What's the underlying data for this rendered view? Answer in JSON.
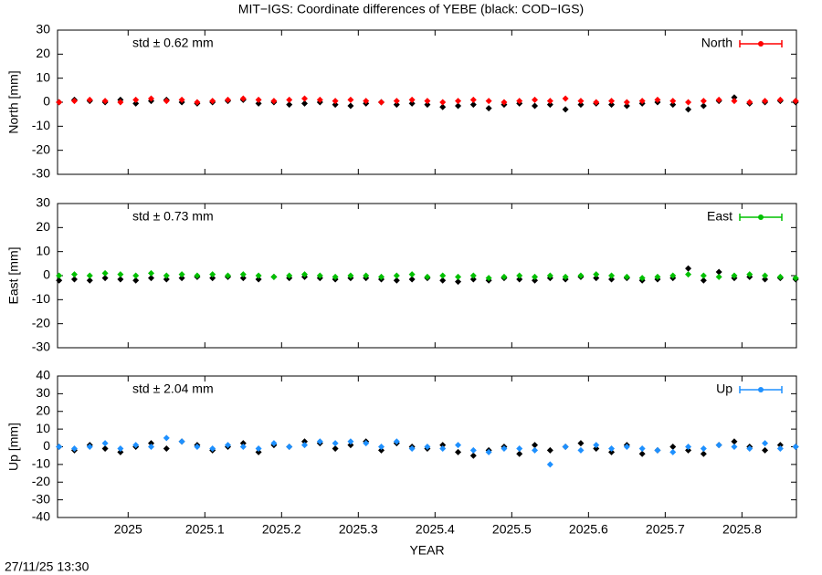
{
  "title": "MIT−IGS: Coordinate differences of YEBE (black: COD−IGS)",
  "timestamp": "27/11/25 13:30",
  "chart_data": [
    {
      "type": "scatter",
      "ylabel": "North [mm]",
      "annotation": "std ± 0.62 mm",
      "xlim": [
        2024.908,
        2025.871
      ],
      "xticks": [
        2025,
        2025.1,
        2025.2,
        2025.3,
        2025.4,
        2025.5,
        2025.6,
        2025.7,
        2025.8
      ],
      "ylim": [
        -30,
        30
      ],
      "yticks": [
        -30,
        -20,
        -10,
        0,
        10,
        20,
        30
      ],
      "legend": "top-right",
      "x": [
        2024.91,
        2024.93,
        2024.95,
        2024.97,
        2024.99,
        2025.01,
        2025.03,
        2025.05,
        2025.07,
        2025.09,
        2025.11,
        2025.13,
        2025.15,
        2025.17,
        2025.19,
        2025.21,
        2025.23,
        2025.25,
        2025.27,
        2025.29,
        2025.31,
        2025.33,
        2025.35,
        2025.37,
        2025.39,
        2025.41,
        2025.43,
        2025.45,
        2025.47,
        2025.49,
        2025.51,
        2025.53,
        2025.55,
        2025.57,
        2025.59,
        2025.61,
        2025.63,
        2025.65,
        2025.67,
        2025.69,
        2025.71,
        2025.73,
        2025.75,
        2025.77,
        2025.79,
        2025.81,
        2025.83,
        2025.85,
        2025.87
      ],
      "series": [
        {
          "color": "#000000",
          "values": [
            0,
            1,
            0.5,
            0,
            1,
            -0.5,
            0.5,
            1,
            0,
            -0.5,
            0,
            0.5,
            1,
            -0.5,
            0,
            -1,
            -0.5,
            0,
            -1,
            -1.5,
            -0.5,
            0,
            -1,
            -0.5,
            -1,
            -2,
            -1.5,
            -1,
            -2.5,
            -1,
            -0.5,
            -1.5,
            -1,
            -3,
            -1,
            -0.5,
            -1,
            -1.5,
            -0.5,
            0,
            -1,
            -3,
            -1.5,
            0.5,
            2,
            -0.5,
            0,
            0.5,
            0
          ]
        },
        {
          "name": "North",
          "color": "#ff0000",
          "values": [
            0,
            0.5,
            1,
            0.5,
            0,
            1,
            1.5,
            0.5,
            1,
            0,
            0.5,
            1,
            1.5,
            1,
            0.5,
            1,
            1.5,
            1,
            0.5,
            1,
            0.5,
            0,
            0.5,
            1,
            0.5,
            0,
            0.5,
            1,
            0.5,
            0,
            0.5,
            1,
            0.5,
            1.5,
            0.5,
            0,
            0.5,
            0,
            0.5,
            1,
            0.5,
            0,
            0.5,
            1,
            0.5,
            0,
            0.5,
            1,
            0.5
          ]
        }
      ]
    },
    {
      "type": "scatter",
      "ylabel": "East [mm]",
      "annotation": "std ± 0.73 mm",
      "xlim": [
        2024.908,
        2025.871
      ],
      "xticks": [
        2025,
        2025.1,
        2025.2,
        2025.3,
        2025.4,
        2025.5,
        2025.6,
        2025.7,
        2025.8
      ],
      "ylim": [
        -30,
        30
      ],
      "yticks": [
        -30,
        -20,
        -10,
        0,
        10,
        20,
        30
      ],
      "legend": "top-right",
      "x": [
        2024.91,
        2024.93,
        2024.95,
        2024.97,
        2024.99,
        2025.01,
        2025.03,
        2025.05,
        2025.07,
        2025.09,
        2025.11,
        2025.13,
        2025.15,
        2025.17,
        2025.19,
        2025.21,
        2025.23,
        2025.25,
        2025.27,
        2025.29,
        2025.31,
        2025.33,
        2025.35,
        2025.37,
        2025.39,
        2025.41,
        2025.43,
        2025.45,
        2025.47,
        2025.49,
        2025.51,
        2025.53,
        2025.55,
        2025.57,
        2025.59,
        2025.61,
        2025.63,
        2025.65,
        2025.67,
        2025.69,
        2025.71,
        2025.73,
        2025.75,
        2025.77,
        2025.79,
        2025.81,
        2025.83,
        2025.85,
        2025.87
      ],
      "series": [
        {
          "color": "#000000",
          "values": [
            -2,
            -1.5,
            -2,
            -1,
            -1.5,
            -2,
            -1,
            -1.5,
            -1,
            -0.5,
            -1,
            -0.5,
            -1,
            -1.5,
            -0.5,
            -1,
            -0.5,
            -1,
            -1.5,
            -1,
            -1,
            -1.5,
            -2,
            -1.5,
            -1,
            -2,
            -2.5,
            -1.5,
            -2,
            -1,
            -1.5,
            -2,
            -1,
            -1.5,
            -0.5,
            -1,
            -1.5,
            -1,
            -2,
            -1.5,
            -1,
            3,
            -2,
            1.5,
            -1,
            -0.5,
            -1.5,
            -1,
            -1.5
          ]
        },
        {
          "name": "East",
          "color": "#00c000",
          "values": [
            0,
            0.5,
            0,
            1,
            0.5,
            0,
            1,
            0,
            0.5,
            0,
            0.5,
            0,
            0.5,
            0,
            -0.5,
            0,
            0.5,
            0,
            -0.5,
            0,
            0,
            -0.5,
            0,
            0.5,
            -0.5,
            0,
            -0.5,
            0,
            -1,
            -0.5,
            0,
            -0.5,
            0,
            -0.5,
            0,
            0.5,
            0,
            -0.5,
            -1,
            -0.5,
            0,
            0.5,
            0,
            -0.5,
            0,
            0.5,
            0,
            -0.5,
            -1
          ]
        }
      ]
    },
    {
      "type": "scatter",
      "ylabel": "Up [mm]",
      "xlabel": "YEAR",
      "annotation": "std ± 2.04 mm",
      "xlim": [
        2024.908,
        2025.871
      ],
      "xticks": [
        2025,
        2025.1,
        2025.2,
        2025.3,
        2025.4,
        2025.5,
        2025.6,
        2025.7,
        2025.8
      ],
      "ylim": [
        -40,
        40
      ],
      "yticks": [
        -40,
        -30,
        -20,
        -10,
        0,
        10,
        20,
        30,
        40
      ],
      "legend": "top-right",
      "x": [
        2024.91,
        2024.93,
        2024.95,
        2024.97,
        2024.99,
        2025.01,
        2025.03,
        2025.05,
        2025.07,
        2025.09,
        2025.11,
        2025.13,
        2025.15,
        2025.17,
        2025.19,
        2025.21,
        2025.23,
        2025.25,
        2025.27,
        2025.29,
        2025.31,
        2025.33,
        2025.35,
        2025.37,
        2025.39,
        2025.41,
        2025.43,
        2025.45,
        2025.47,
        2025.49,
        2025.51,
        2025.53,
        2025.55,
        2025.57,
        2025.59,
        2025.61,
        2025.63,
        2025.65,
        2025.67,
        2025.69,
        2025.71,
        2025.73,
        2025.75,
        2025.77,
        2025.79,
        2025.81,
        2025.83,
        2025.85,
        2025.87
      ],
      "series": [
        {
          "color": "#000000",
          "values": [
            0,
            -2,
            1,
            -1,
            -3,
            0,
            2,
            -1,
            3,
            1,
            -2,
            0,
            2,
            -3,
            1,
            0,
            3,
            2,
            -1,
            1,
            3,
            -2,
            2,
            0,
            -1,
            1,
            -3,
            -5,
            -2,
            0,
            -4,
            1,
            -2,
            0,
            2,
            -1,
            -3,
            1,
            -4,
            -2,
            0,
            -2,
            -4,
            1,
            3,
            0,
            -2,
            1,
            0
          ]
        },
        {
          "name": "Up",
          "color": "#1e90ff",
          "values": [
            0,
            -1,
            0,
            2,
            -1,
            1,
            0,
            5,
            3,
            0,
            -1,
            1,
            0,
            -1,
            2,
            0,
            1,
            3,
            2,
            3,
            2,
            0,
            3,
            -1,
            0,
            -1,
            1,
            -2,
            -3,
            -1,
            -1,
            -2,
            -10,
            0,
            -2,
            1,
            -1,
            0,
            -1,
            -2,
            -3,
            0,
            -1,
            1,
            0,
            -1,
            2,
            -1,
            0
          ]
        }
      ]
    }
  ]
}
